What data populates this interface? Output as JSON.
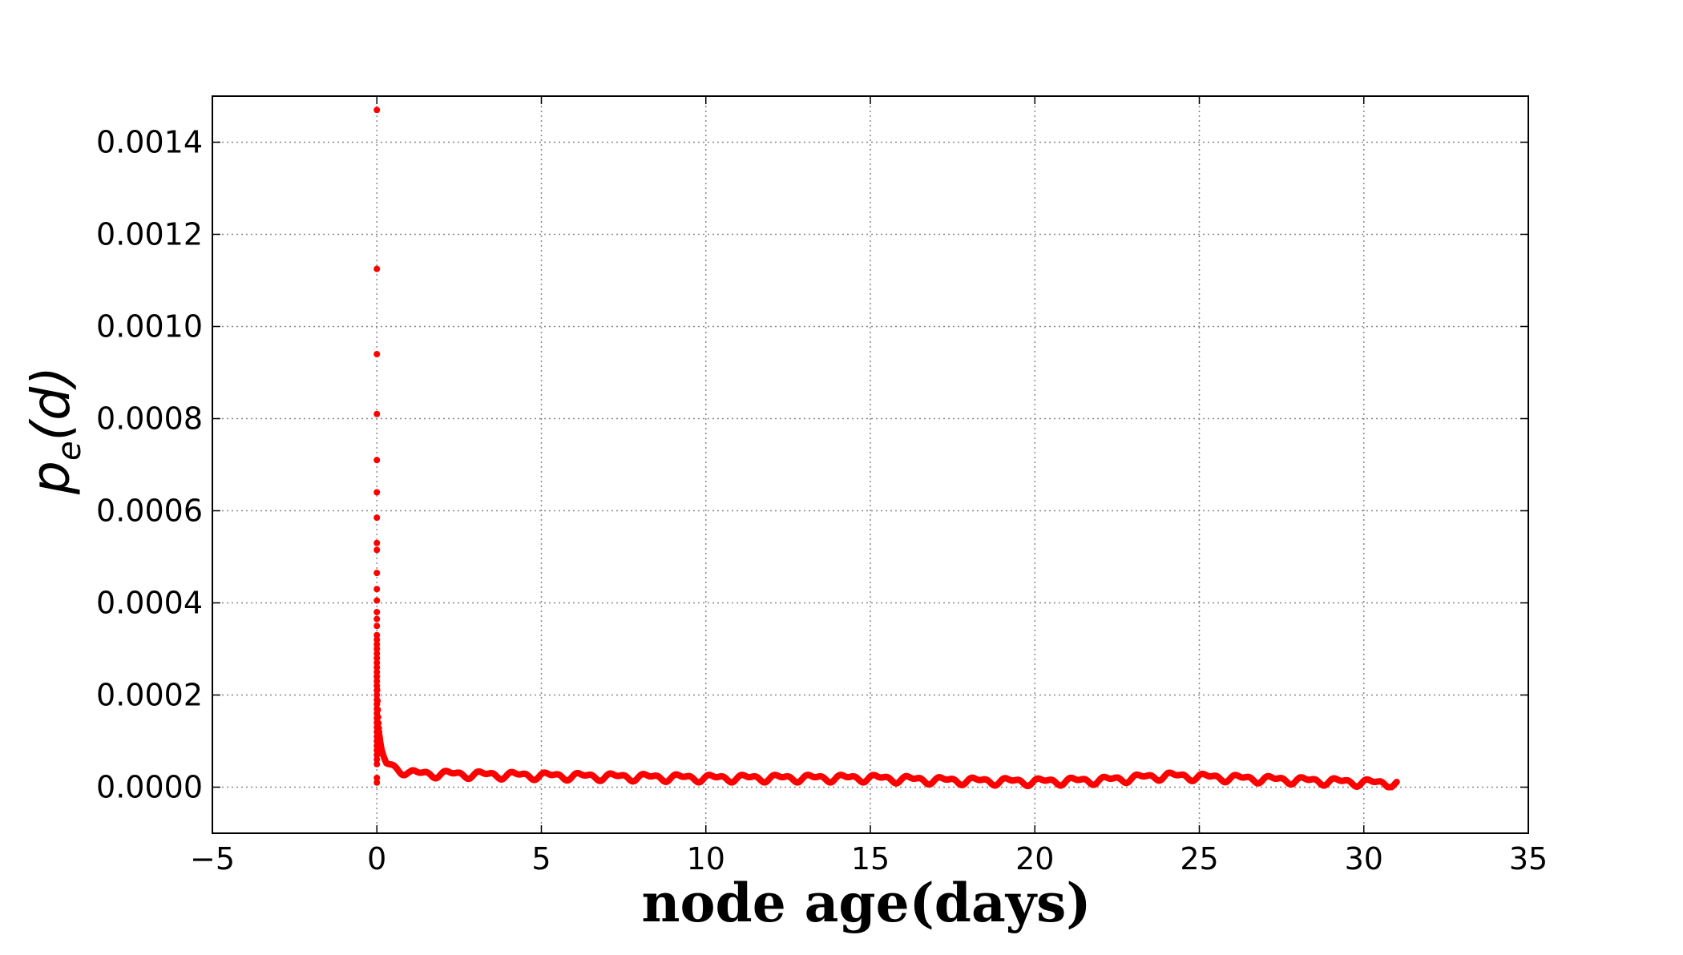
{
  "chart_data": {
    "type": "scatter",
    "title": "",
    "xlabel": "node age(days)",
    "ylabel_main": "p",
    "ylabel_sub": "e",
    "ylabel_tail": "(d)",
    "xlim": [
      -5,
      35
    ],
    "ylim": [
      -0.0001,
      0.0015
    ],
    "xticks": [
      -5,
      0,
      5,
      10,
      15,
      20,
      25,
      30,
      35
    ],
    "xtick_labels": [
      "−5",
      "0",
      "5",
      "10",
      "15",
      "20",
      "25",
      "30",
      "35"
    ],
    "yticks": [
      0.0,
      0.0002,
      0.0004,
      0.0006,
      0.0008,
      0.001,
      0.0012,
      0.0014
    ],
    "ytick_labels": [
      "0.0000",
      "0.0002",
      "0.0004",
      "0.0006",
      "0.0008",
      "0.0010",
      "0.0012",
      "0.0014"
    ],
    "grid": true,
    "marker_color": "#ff0000",
    "series": [
      {
        "x_start": 0,
        "x_end": 31,
        "spike_x": 0,
        "spike_y": [
          0.00147,
          0.001125,
          0.00094,
          0.00081,
          0.00071,
          0.00064,
          0.000585,
          0.00053,
          0.000515,
          0.000465,
          0.00043,
          0.000405,
          0.00038,
          0.000365,
          0.00035,
          0.00033,
          0.00032,
          0.00031,
          0.0003,
          0.00029,
          0.00028,
          0.00027,
          0.00026,
          0.00025,
          0.00024,
          0.00023,
          0.00022,
          0.00021,
          0.0002,
          0.00019,
          0.00018,
          0.00017,
          0.00016,
          0.00015,
          0.00014,
          0.00013,
          0.00012,
          0.00011,
          0.0001,
          9e-05,
          8e-05,
          7e-05,
          6e-05,
          5e-05,
          2e-05,
          1e-05
        ],
        "baseline_profile": [
          [
            0.1,
            8e-05
          ],
          [
            0.3,
            5e-05
          ],
          [
            1,
            3e-05
          ],
          [
            5,
            2.5e-05
          ],
          [
            10,
            2e-05
          ],
          [
            15,
            2e-05
          ],
          [
            17,
            1.5e-05
          ],
          [
            20,
            1.2e-05
          ],
          [
            22,
            1.5e-05
          ],
          [
            24,
            2.5e-05
          ],
          [
            26,
            2e-05
          ],
          [
            28,
            1.5e-05
          ],
          [
            31,
            8e-06
          ]
        ],
        "daily_oscillation_amplitude": 1e-05
      }
    ]
  }
}
